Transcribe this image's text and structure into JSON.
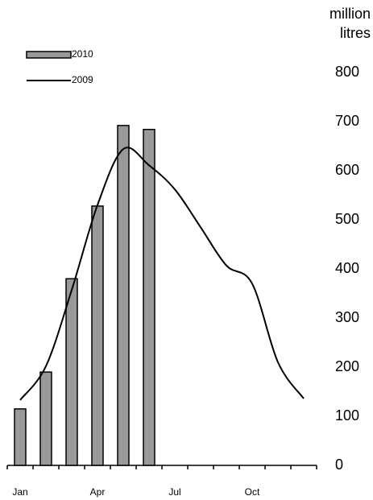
{
  "chart_data": {
    "type": "bar-line",
    "ylabel": [
      "million",
      "litres"
    ],
    "categories": [
      "Jan",
      null,
      null,
      "Apr",
      null,
      null,
      "Jul",
      null,
      null,
      "Oct",
      null,
      null
    ],
    "series": [
      {
        "name": "2010",
        "type": "bar",
        "color": "#999999",
        "values": [
          115,
          190,
          380,
          528,
          692,
          684,
          null,
          null,
          null,
          null,
          null,
          null
        ]
      },
      {
        "name": "2009",
        "type": "line",
        "color": "#000000",
        "values": [
          133,
          202,
          357,
          530,
          644,
          611,
          562,
          485,
          407,
          370,
          210,
          136
        ]
      }
    ],
    "ylim": [
      0,
      800
    ],
    "yticks": [
      0,
      100,
      200,
      300,
      400,
      500,
      600,
      700,
      800
    ],
    "legend": "top-left",
    "grid": false
  }
}
